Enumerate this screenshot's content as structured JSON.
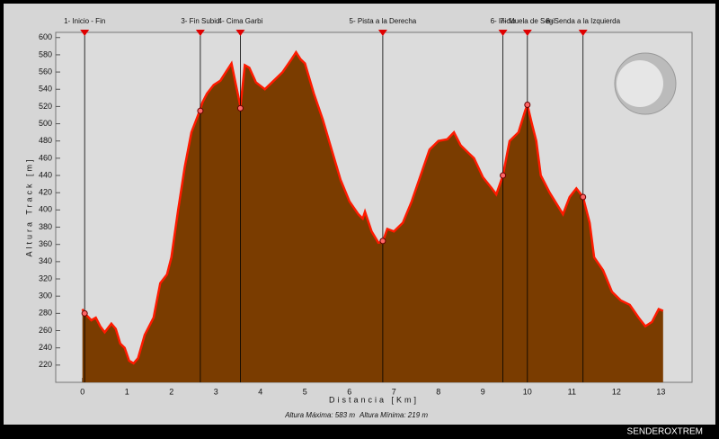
{
  "chart_data": {
    "type": "area",
    "x_label": "Distancia [Km]",
    "y_label": "Altura Track [m]",
    "footer_max": "Altura Máxima: 583 m",
    "footer_min": "Altura Mínima: 219 m",
    "watermark": "SENDEROXTREM",
    "x": [
      0,
      0.05,
      0.2,
      0.3,
      0.4,
      0.5,
      0.65,
      0.75,
      0.85,
      0.95,
      1.05,
      1.15,
      1.25,
      1.4,
      1.6,
      1.75,
      1.9,
      2.0,
      2.15,
      2.3,
      2.45,
      2.6,
      2.7,
      2.8,
      2.95,
      3.1,
      3.25,
      3.35,
      3.45,
      3.55,
      3.65,
      3.75,
      3.9,
      4.1,
      4.3,
      4.5,
      4.7,
      4.8,
      4.9,
      5.0,
      5.2,
      5.4,
      5.6,
      5.8,
      6.0,
      6.2,
      6.3,
      6.35,
      6.5,
      6.65,
      6.75,
      6.85,
      7.0,
      7.2,
      7.4,
      7.6,
      7.8,
      8.0,
      8.2,
      8.35,
      8.5,
      8.7,
      8.8,
      9.0,
      9.2,
      9.3,
      9.45,
      9.6,
      9.8,
      9.95,
      10.0,
      10.1,
      10.2,
      10.3,
      10.5,
      10.8,
      10.95,
      11.1,
      11.25,
      11.4,
      11.5,
      11.7,
      11.9,
      12.1,
      12.3,
      12.5,
      12.65,
      12.8,
      12.95,
      13.05
    ],
    "series": [
      {
        "name": "Altura",
        "color": "#ff1a00",
        "fill": "#7a3c00",
        "values": [
          285,
          280,
          272,
          275,
          265,
          258,
          268,
          262,
          245,
          240,
          225,
          222,
          228,
          255,
          275,
          315,
          325,
          345,
          400,
          450,
          490,
          510,
          525,
          535,
          545,
          550,
          562,
          570,
          545,
          520,
          568,
          565,
          548,
          540,
          550,
          560,
          575,
          583,
          575,
          570,
          535,
          505,
          470,
          435,
          410,
          395,
          390,
          398,
          375,
          362,
          363,
          378,
          375,
          385,
          410,
          440,
          470,
          480,
          482,
          490,
          475,
          465,
          460,
          438,
          425,
          418,
          440,
          480,
          490,
          515,
          522,
          500,
          480,
          440,
          420,
          395,
          415,
          425,
          415,
          385,
          345,
          330,
          305,
          295,
          290,
          275,
          265,
          270,
          285,
          283
        ]
      }
    ],
    "waypoints": [
      {
        "label": "1- Inicio - Fin",
        "x": 0.05,
        "y": 280
      },
      {
        "label": "3- Fin Subid",
        "x": 2.65,
        "y": 515
      },
      {
        "label": "4- Cima Garbi",
        "x": 3.55,
        "y": 518
      },
      {
        "label": "5- Pista a la Derecha",
        "x": 6.75,
        "y": 364
      },
      {
        "label": "6- Inicio",
        "x": 9.45,
        "y": 440
      },
      {
        "label": "7- Muela de Segi",
        "x": 10.0,
        "y": 522
      },
      {
        "label": "8- Senda a la Izquierda",
        "x": 11.25,
        "y": 415
      }
    ],
    "xlim": [
      -0.6,
      13.7
    ],
    "ylim": [
      200,
      606
    ],
    "xticks": [
      0,
      1,
      2,
      3,
      4,
      5,
      6,
      7,
      8,
      9,
      10,
      11,
      12,
      13
    ],
    "yticks": [
      220,
      240,
      260,
      280,
      300,
      320,
      340,
      360,
      380,
      400,
      420,
      440,
      460,
      480,
      500,
      520,
      540,
      560,
      580,
      600
    ]
  }
}
